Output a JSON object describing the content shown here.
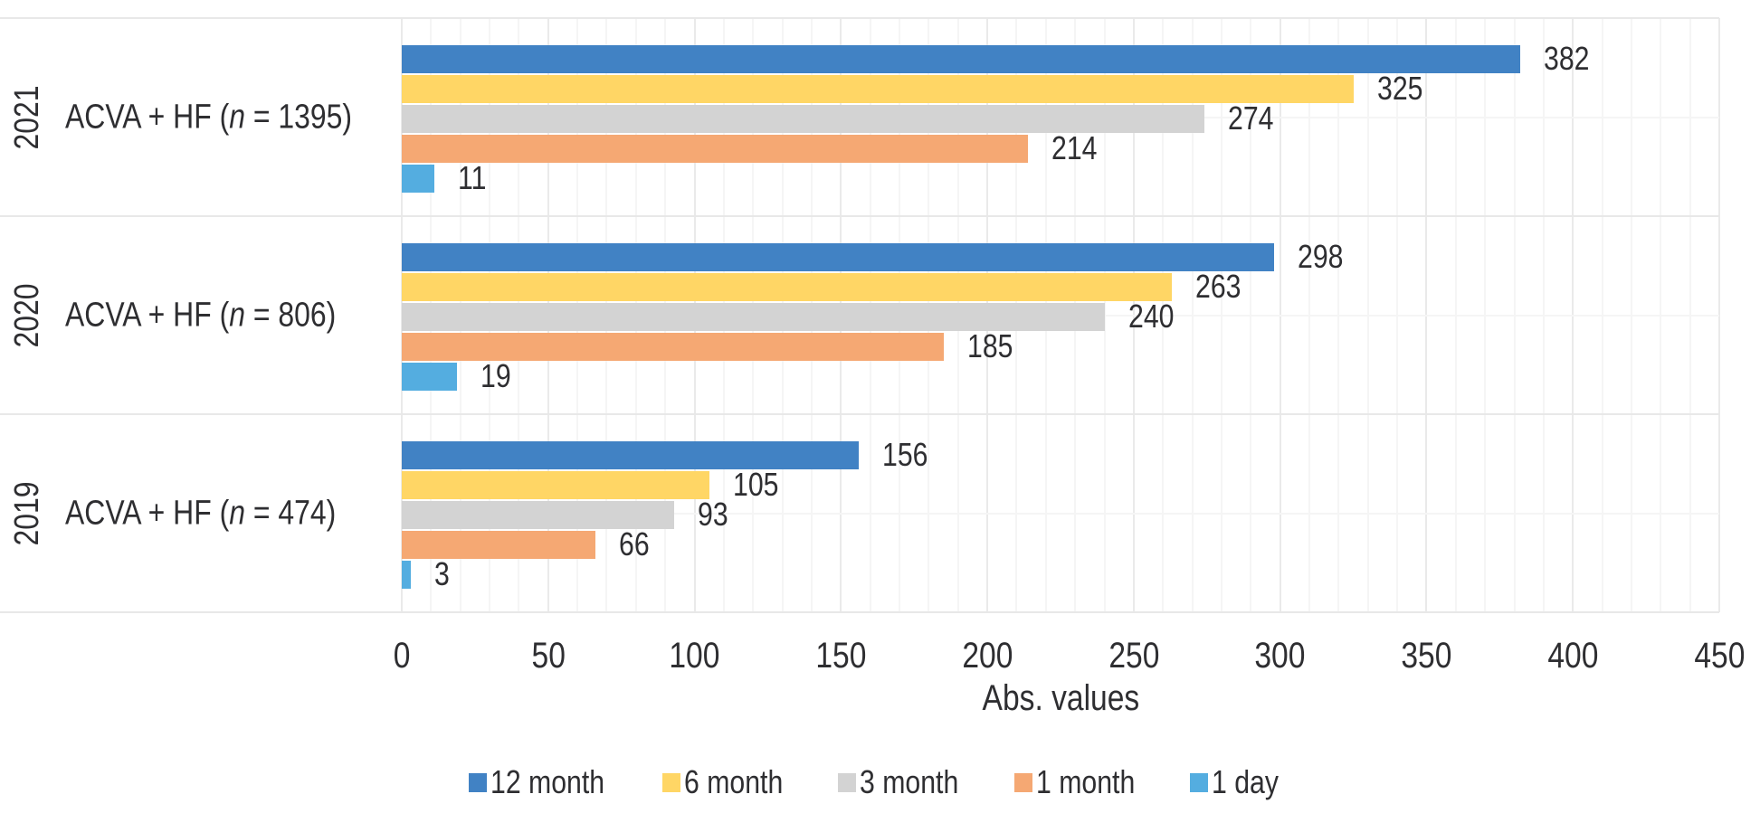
{
  "chart_data": {
    "type": "bar",
    "orientation": "horizontal",
    "title": "",
    "xlabel": "Abs. values",
    "xlim": [
      0,
      450
    ],
    "x_ticks": [
      0,
      50,
      100,
      150,
      200,
      250,
      300,
      350,
      400,
      450
    ],
    "grid": {
      "visible": true,
      "minor_step": 10,
      "major_step": 50
    },
    "legend_position": "bottom",
    "series": [
      {
        "name": "12 month",
        "color": "#4182C4",
        "values": [
          382,
          298,
          156
        ]
      },
      {
        "name": "6 month",
        "color": "#FFD665",
        "values": [
          325,
          263,
          105
        ]
      },
      {
        "name": "3 month",
        "color": "#D3D3D3",
        "values": [
          274,
          240,
          93
        ]
      },
      {
        "name": "1 month",
        "color": "#F5A873",
        "values": [
          214,
          185,
          66
        ]
      },
      {
        "name": "1 day",
        "color": "#54ADE0",
        "values": [
          11,
          19,
          3
        ]
      }
    ],
    "groups": [
      {
        "year": "2021",
        "label_pre": "ACVA + HF (",
        "label_n": "n",
        "label_post": " = 1395)",
        "n": 1395
      },
      {
        "year": "2020",
        "label_pre": "ACVA + HF (",
        "label_n": "n",
        "label_post": " = 806)",
        "n": 806
      },
      {
        "year": "2019",
        "label_pre": "ACVA + HF (",
        "label_n": "n",
        "label_post": " = 474)",
        "n": 474
      }
    ],
    "colors": {
      "text": "#2e2e31",
      "grid_minor": "#f5f5f5",
      "grid_major": "#eaeaea",
      "group_boundary": "#e8e8e8"
    }
  }
}
